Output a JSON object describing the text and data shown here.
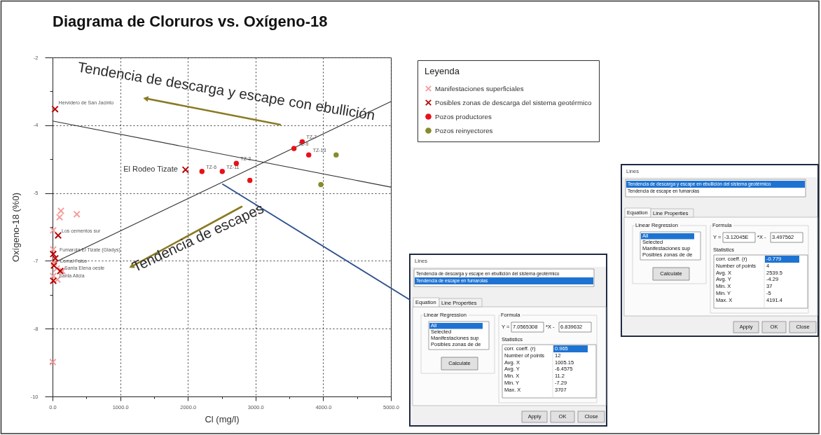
{
  "chart_data": [
    {
      "type": "scatter",
      "title": "Diagrama de Cloruros vs. Oxígeno-18",
      "xlabel": "Cl (mg/l)",
      "ylabel": "Oxígeno-18 (%0)",
      "legend_title": "Leyenda",
      "xlim": [
        0,
        5000
      ],
      "ylim": [
        -10,
        -2
      ],
      "xticks": [
        {
          "value": 0,
          "label": "0.0"
        },
        {
          "value": 500,
          "label": null
        },
        {
          "value": 1000,
          "label": "1000.0"
        },
        {
          "value": 1500,
          "label": null
        },
        {
          "value": 2000,
          "label": "2000.0"
        },
        {
          "value": 2500,
          "label": null
        },
        {
          "value": 3000,
          "label": "3000.0"
        },
        {
          "value": 3500,
          "label": null
        },
        {
          "value": 4000,
          "label": "4000.0"
        },
        {
          "value": 4500,
          "label": null
        },
        {
          "value": 5000,
          "label": "5000.0"
        }
      ],
      "yticks": [
        -2,
        {
          "value": -2.8,
          "label": null
        },
        {
          "value": -3.6,
          "label": "-4"
        },
        {
          "value": -4.4,
          "label": null
        },
        {
          "value": -5.2,
          "label": "-5"
        },
        {
          "value": -6.0,
          "label": null
        },
        {
          "value": -6.8,
          "label": "-7"
        },
        {
          "value": -7.6,
          "label": null
        },
        {
          "value": -8.4,
          "label": "-8"
        },
        {
          "value": -9.2,
          "label": null
        },
        -10
      ],
      "grid": true,
      "legend": "top right",
      "series": [
        {
          "name": "Manifestaciones superficiales",
          "color": "#f59c9c",
          "marker": "cross",
          "x": [
            124,
            104,
            359,
            10,
            10,
            20,
            62,
            145,
            10,
            72,
            5
          ],
          "values": [
            -5.62,
            -5.77,
            -5.7,
            -6.08,
            -6.53,
            -6.84,
            -6.98,
            -7.04,
            -7.16,
            -7.24,
            -9.19
          ]
        },
        {
          "name": "Posibles zonas de descarga del sistema geotérmico",
          "color": "#b80000",
          "marker": "cross",
          "x": [
            37,
            1965,
            83,
            10,
            41,
            21,
            114,
            11
          ],
          "values": [
            -3.22,
            -4.65,
            -6.2,
            -6.64,
            -6.74,
            -6.91,
            -7.04,
            -7.27
          ]
        },
        {
          "name": "Pozos productores",
          "color": "#e8101a",
          "marker": "circle",
          "x": [
            2208,
            2508,
            2716,
            2916,
            3568,
            3690,
            3786
          ],
          "values": [
            -4.69,
            -4.69,
            -4.5,
            -4.9,
            -4.15,
            -3.99,
            -4.3
          ]
        },
        {
          "name": "Pozos reinyectores",
          "color": "#878b2b",
          "marker": "circle",
          "x": [
            4191,
            3965
          ],
          "values": [
            -4.3,
            -5.0
          ]
        },
        {
          "type": "line",
          "color": "#333333",
          "line_style": "solid",
          "x": [
            0,
            5000
          ],
          "values": [
            -3.5,
            -5.06
          ]
        },
        {
          "type": "line",
          "color": "#333333",
          "line_style": "solid",
          "x": [
            0,
            5000
          ],
          "values": [
            -6.86,
            -3.04
          ]
        }
      ],
      "annotations": [
        "Tendencia de descarga y escape con ebullición",
        "Tendencia de escapes",
        {
          "text": "Hervidero de San Jacinto",
          "x": 37,
          "y": -3.22
        },
        {
          "text": "El Rodeo Tizate",
          "x": 1965,
          "y": -4.65
        },
        {
          "text": "Los cementos sur",
          "x": 83,
          "y": -6.2
        },
        {
          "text": "Fumarola El Tizate (Gladys)",
          "x": 10,
          "y": -6.53
        },
        {
          "text": "Comal Falso",
          "x": 41,
          "y": -6.74
        },
        {
          "text": "Santa Elena oeste",
          "x": 114,
          "y": -7.04
        },
        {
          "text": "Santa Alicia",
          "x": 10,
          "y": -7.16
        },
        {
          "text": "TZ-7",
          "x": 3690,
          "y": -3.99
        },
        {
          "text": "TZ-9",
          "x": 3568,
          "y": -4.15
        },
        {
          "text": "TZ-13",
          "x": 3786,
          "y": -4.3
        },
        {
          "text": "TZ-3",
          "x": 2716,
          "y": -4.5
        },
        {
          "text": "TZ-6",
          "x": 2208,
          "y": -4.69
        },
        {
          "text": "TZ-11",
          "x": 2508,
          "y": -4.69
        }
      ]
    },
    {
      "type": "other",
      "title": "Lines",
      "annotations": [
        "Tendencia de descarga y escape en ebullición del sistema geotérmico",
        "Tendencia de escape en fumarolas",
        "Equation",
        "Line Properties",
        "Linear Regression",
        "All",
        "Selected",
        "Manifestaciones sup",
        "Posibles zonas de de",
        "Calculate",
        "Formula",
        "Y =",
        "-3.12045E",
        "*X -",
        "3.497562",
        "Statistics",
        "corr. coeff. (r)",
        "-0.779",
        "Number of points",
        "4",
        "Avg. X",
        "2539.5",
        "Avg. Y",
        "-4.29",
        "Min. X",
        "37",
        "Min. Y",
        "-5",
        "Max. X",
        "4191.4",
        "Apply",
        "OK",
        "Close"
      ]
    },
    {
      "type": "other",
      "title": "Lines",
      "annotations": [
        "Tendencia de descarga y escape en ebullición del sistema geotérmico",
        "Tendencia de escape en fumarolas",
        "Equation",
        "Line Properties",
        "Linear Regression",
        "All",
        "Selected",
        "Manifestaciones sup",
        "Posibles zonas de de",
        "Calculate",
        "Formula",
        "Y =",
        "7.0565308",
        "*X -",
        "6.839632",
        "Statistics",
        "corr. coeff. (r)",
        "0.965",
        "Number of points",
        "12",
        "Avg. X",
        "1005.15",
        "Avg. Y",
        "-6.4575",
        "Min. X",
        "11.2",
        "Min. Y",
        "-7.29",
        "Max. X",
        "3707",
        "Apply",
        "OK",
        "Close"
      ]
    }
  ]
}
